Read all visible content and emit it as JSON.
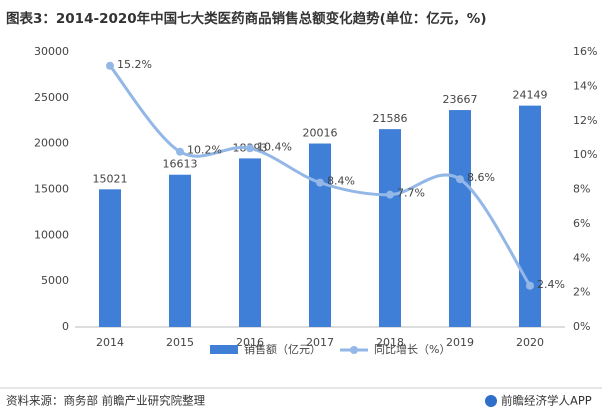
{
  "chart_data": {
    "type": "bar",
    "title": "图表3：2014-2020年中国七大类医药商品销售总额变化趋势(单位：亿元，%)",
    "categories": [
      "2014",
      "2015",
      "2016",
      "2017",
      "2018",
      "2019",
      "2020"
    ],
    "series": [
      {
        "name": "销售额（亿元）",
        "type": "bar",
        "color": "#3f7fd8",
        "values": [
          15021,
          16613,
          18393,
          20016,
          21586,
          23667,
          24149
        ]
      },
      {
        "name": "同比增长（%）",
        "type": "line",
        "axis": "y2",
        "color": "#93b7e6",
        "values": [
          15.2,
          10.2,
          10.4,
          8.4,
          7.7,
          8.6,
          2.4
        ],
        "value_labels": [
          "15.2%",
          "10.2%",
          "10.4%",
          "8.4%",
          "7.7%",
          "8.6%",
          "2.4%"
        ]
      }
    ],
    "ylim": [
      0,
      30000
    ],
    "yticks": [
      0,
      5000,
      10000,
      15000,
      20000,
      25000,
      30000
    ],
    "y2lim": [
      0,
      16
    ],
    "y2ticks": [
      {
        "value": 0,
        "label": "0%"
      },
      {
        "value": 2,
        "label": "2%"
      },
      {
        "value": 4,
        "label": "4%"
      },
      {
        "value": 6,
        "label": "6%"
      },
      {
        "value": 8,
        "label": "8%"
      },
      {
        "value": 10,
        "label": "10%"
      },
      {
        "value": 12,
        "label": "12%"
      },
      {
        "value": 14,
        "label": "14%"
      },
      {
        "value": 16,
        "label": "16%"
      }
    ],
    "source": "资料来源：商务部 前瞻产业研究院整理",
    "brand": "前瞻经济学人APP"
  }
}
